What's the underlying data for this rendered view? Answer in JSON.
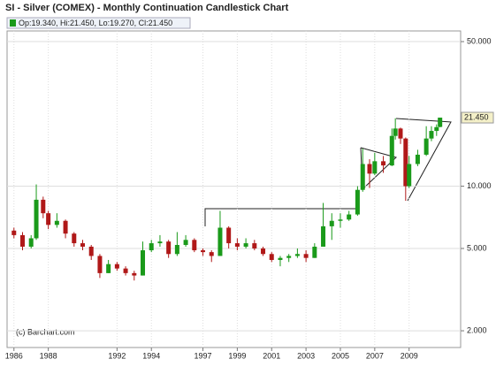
{
  "chart_data": {
    "type": "candlestick",
    "title": "SI - Silver (COMEX) - Monthly Continuation Candlestick Chart",
    "legend_text": "Op:19.340, Hi:21.450, Lo:19.270, Cl:21.450",
    "annotation": "(c) Barchart.com",
    "last_label": "21.450",
    "log_scale": true,
    "grid": true,
    "up_color": "#1a9a1a",
    "down_color": "#b01818",
    "xlim": [
      1985.6,
      2012
    ],
    "xticks": [
      1986,
      1988,
      1992,
      1994,
      1997,
      1999,
      2001,
      2003,
      2005,
      2007,
      2009
    ],
    "ylim": [
      1.66,
      56.3
    ],
    "yticks": [
      {
        "value": 50,
        "label": "50.000"
      },
      {
        "value": 10,
        "label": "10.000"
      },
      {
        "value": 5,
        "label": "5.000"
      },
      {
        "value": 2,
        "label": "2.000"
      }
    ],
    "x": [
      1986.0,
      1986.5,
      1987.0,
      1987.3,
      1987.7,
      1988.0,
      1988.5,
      1989.0,
      1989.5,
      1990.0,
      1990.5,
      1991.0,
      1991.5,
      1992.0,
      1992.5,
      1993.0,
      1993.5,
      1994.0,
      1994.5,
      1995.0,
      1995.5,
      1996.0,
      1996.5,
      1997.0,
      1997.5,
      1998.0,
      1998.5,
      1999.0,
      1999.5,
      2000.0,
      2000.5,
      2001.0,
      2001.5,
      2002.0,
      2002.5,
      2003.0,
      2003.5,
      2004.0,
      2004.5,
      2005.0,
      2005.5,
      2006.0,
      2006.3,
      2006.7,
      2007.0,
      2007.5,
      2008.0,
      2008.2,
      2008.5,
      2008.8,
      2009.0,
      2009.5,
      2010.0,
      2010.3,
      2010.6,
      2010.8
    ],
    "open": [
      6.1,
      5.8,
      5.1,
      5.6,
      8.6,
      7.4,
      6.5,
      6.8,
      5.9,
      5.3,
      5.1,
      4.6,
      3.8,
      4.2,
      4.0,
      3.8,
      3.7,
      4.9,
      5.3,
      5.4,
      4.7,
      5.2,
      5.5,
      4.9,
      4.8,
      4.6,
      6.3,
      5.3,
      5.1,
      5.3,
      5.0,
      4.7,
      4.4,
      4.5,
      4.6,
      4.7,
      4.5,
      5.1,
      6.4,
      6.8,
      6.9,
      7.3,
      9.6,
      12.8,
      11.5,
      13.2,
      12.6,
      17.5,
      19.0,
      17.0,
      10.0,
      12.8,
      14.2,
      17.0,
      18.5,
      19.34
    ],
    "high": [
      6.3,
      6.0,
      5.8,
      10.2,
      8.9,
      7.6,
      7.4,
      6.9,
      6.0,
      5.5,
      5.2,
      4.7,
      4.4,
      4.3,
      4.1,
      3.9,
      5.4,
      5.5,
      5.8,
      5.5,
      6.0,
      5.8,
      5.6,
      5.0,
      4.9,
      7.6,
      6.4,
      5.6,
      5.6,
      5.5,
      5.1,
      4.8,
      4.6,
      4.7,
      5.0,
      4.9,
      5.3,
      8.3,
      7.4,
      7.4,
      7.6,
      10.0,
      15.2,
      13.5,
      14.5,
      14.0,
      19.0,
      21.3,
      19.2,
      17.2,
      14.0,
      15.0,
      19.5,
      19.5,
      19.9,
      21.45
    ],
    "low": [
      5.6,
      4.9,
      5.0,
      5.5,
      7.0,
      6.2,
      6.3,
      5.6,
      5.1,
      4.9,
      4.4,
      3.6,
      3.8,
      3.9,
      3.7,
      3.5,
      3.7,
      4.8,
      5.1,
      4.5,
      4.6,
      5.1,
      4.8,
      4.6,
      4.3,
      4.6,
      5.0,
      4.9,
      5.0,
      4.9,
      4.6,
      4.3,
      4.1,
      4.3,
      4.5,
      4.3,
      4.5,
      5.1,
      5.5,
      6.3,
      6.8,
      7.2,
      9.4,
      9.8,
      11.3,
      11.6,
      12.5,
      16.8,
      16.0,
      8.5,
      9.8,
      12.5,
      14.0,
      16.5,
      17.5,
      19.27
    ],
    "close": [
      5.8,
      5.1,
      5.6,
      8.6,
      7.4,
      6.5,
      6.8,
      5.9,
      5.3,
      5.1,
      4.6,
      3.8,
      4.2,
      4.0,
      3.8,
      3.7,
      4.9,
      5.3,
      5.4,
      4.7,
      5.2,
      5.5,
      4.9,
      4.8,
      4.6,
      6.3,
      5.3,
      5.1,
      5.3,
      5.0,
      4.7,
      4.4,
      4.5,
      4.6,
      4.7,
      4.5,
      5.1,
      6.4,
      6.8,
      6.9,
      7.3,
      9.6,
      12.8,
      11.5,
      13.2,
      12.6,
      17.5,
      19.0,
      17.0,
      10.0,
      12.8,
      14.2,
      17.0,
      18.5,
      19.3,
      21.45
    ]
  }
}
